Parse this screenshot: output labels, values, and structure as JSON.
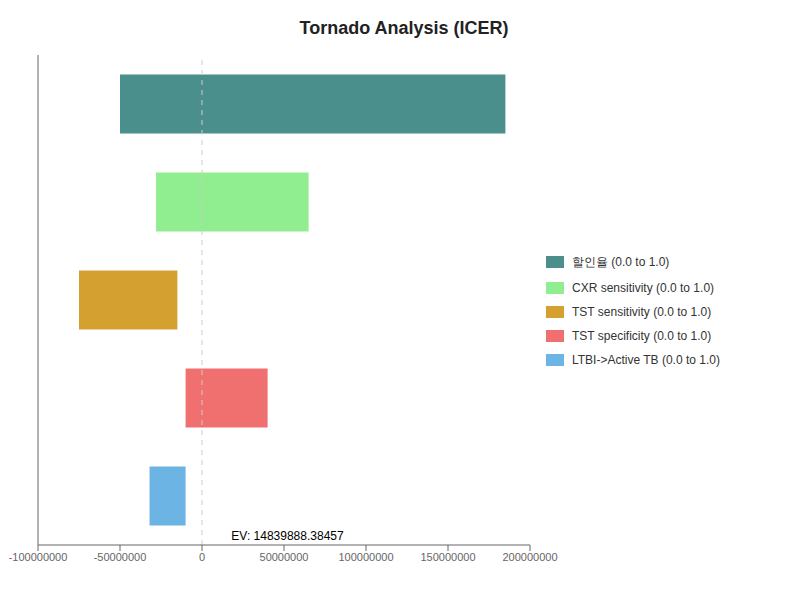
{
  "chart_data": {
    "type": "bar",
    "orientation": "horizontal",
    "title": "Tornado Analysis (ICER)",
    "categories": [
      null,
      null,
      null,
      null,
      null
    ],
    "series": [
      {
        "name": "할인율 (0.0 to 1.0)",
        "color": "#4a8f8c",
        "values": [
          [
            -50000000,
            185000000
          ],
          null,
          null,
          null,
          null
        ]
      },
      {
        "name": "CXR sensitivity (0.0 to 1.0)",
        "color": "#90ee90",
        "values": [
          null,
          [
            -28000000,
            65000000
          ],
          null,
          null,
          null
        ]
      },
      {
        "name": "TST sensitivity (0.0 to 1.0)",
        "color": "#d4a030",
        "values": [
          null,
          null,
          [
            -75000000,
            -15000000
          ],
          null,
          null
        ]
      },
      {
        "name": "TST specificity (0.0 to 1.0)",
        "color": "#f07070",
        "values": [
          null,
          null,
          null,
          [
            -10000000,
            40000000
          ],
          null
        ]
      },
      {
        "name": "LTBI->Active TB (0.0 to 1.0)",
        "color": "#6cb4e4",
        "values": [
          null,
          null,
          null,
          null,
          [
            -32000000,
            -10000000
          ]
        ]
      }
    ],
    "xlim": [
      -100000000,
      200000000
    ],
    "xticks": [
      -100000000,
      -50000000,
      0,
      50000000,
      100000000,
      150000000,
      200000000
    ],
    "annotations": [
      {
        "text": "EV: 14839888.38457",
        "x": 14839888.38457
      }
    ],
    "reference_lines": [
      {
        "x": 0,
        "line_style": "dashed"
      }
    ],
    "grid": false,
    "legend": "right",
    "tick_labels": "x"
  }
}
